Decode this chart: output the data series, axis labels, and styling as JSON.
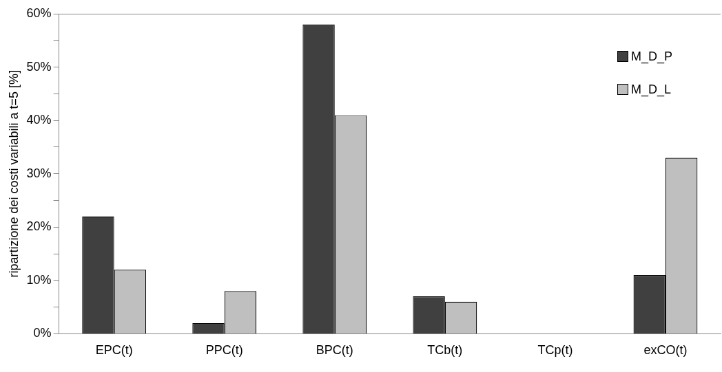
{
  "chart_data": {
    "type": "bar",
    "ylabel": "ripartizione dei costi variabili a t=5 [%]",
    "categories": [
      "EPC(t)",
      "PPC(t)",
      "BPC(t)",
      "TCb(t)",
      "TCp(t)",
      "exCO(t)"
    ],
    "series": [
      {
        "name": "M_D_P",
        "color": "#404040",
        "values": [
          22,
          2,
          58,
          7,
          0,
          11
        ]
      },
      {
        "name": "M_D_L",
        "color": "#bfbfbf",
        "values": [
          12,
          8,
          41,
          6,
          0,
          33
        ]
      }
    ],
    "ylim": [
      0,
      60
    ],
    "yticks": [
      {
        "value": 0,
        "label": "0%"
      },
      {
        "value": 5,
        "label": null
      },
      {
        "value": 10,
        "label": "10%"
      },
      {
        "value": 15,
        "label": null
      },
      {
        "value": 20,
        "label": "20%"
      },
      {
        "value": 25,
        "label": null
      },
      {
        "value": 30,
        "label": "30%"
      },
      {
        "value": 35,
        "label": null
      },
      {
        "value": 40,
        "label": "40%"
      },
      {
        "value": 45,
        "label": null
      },
      {
        "value": 50,
        "label": "50%"
      },
      {
        "value": 55,
        "label": null
      },
      {
        "value": 60,
        "label": "60%"
      }
    ],
    "grid": false,
    "legend": "top right"
  }
}
